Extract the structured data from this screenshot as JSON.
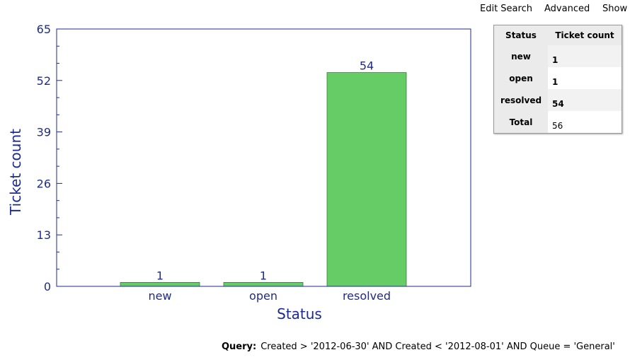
{
  "nav": {
    "edit_search": "Edit Search",
    "advanced": "Advanced",
    "show": "Show F"
  },
  "chart_data": {
    "type": "bar",
    "categories": [
      "new",
      "open",
      "resolved"
    ],
    "values": [
      1,
      1,
      54
    ],
    "data_labels": [
      "1",
      "1",
      "54"
    ],
    "xlabel": "Status",
    "ylabel": "Ticket count",
    "ylim": [
      0,
      65
    ],
    "yticks": [
      0,
      13,
      26,
      39,
      52,
      65
    ],
    "bar_color": "#66cc66",
    "axis_color": "#1e2b8e",
    "grid": false
  },
  "summary": {
    "headers": [
      "Status",
      "Ticket count"
    ],
    "rows": [
      {
        "status": "new",
        "count": "1"
      },
      {
        "status": "open",
        "count": "1"
      },
      {
        "status": "resolved",
        "count": "54"
      }
    ],
    "total_label": "Total",
    "total_value": "56"
  },
  "query": {
    "label": "Query:",
    "text": "Created > '2012-06-30' AND Created < '2012-08-01' AND Queue = 'General'"
  }
}
